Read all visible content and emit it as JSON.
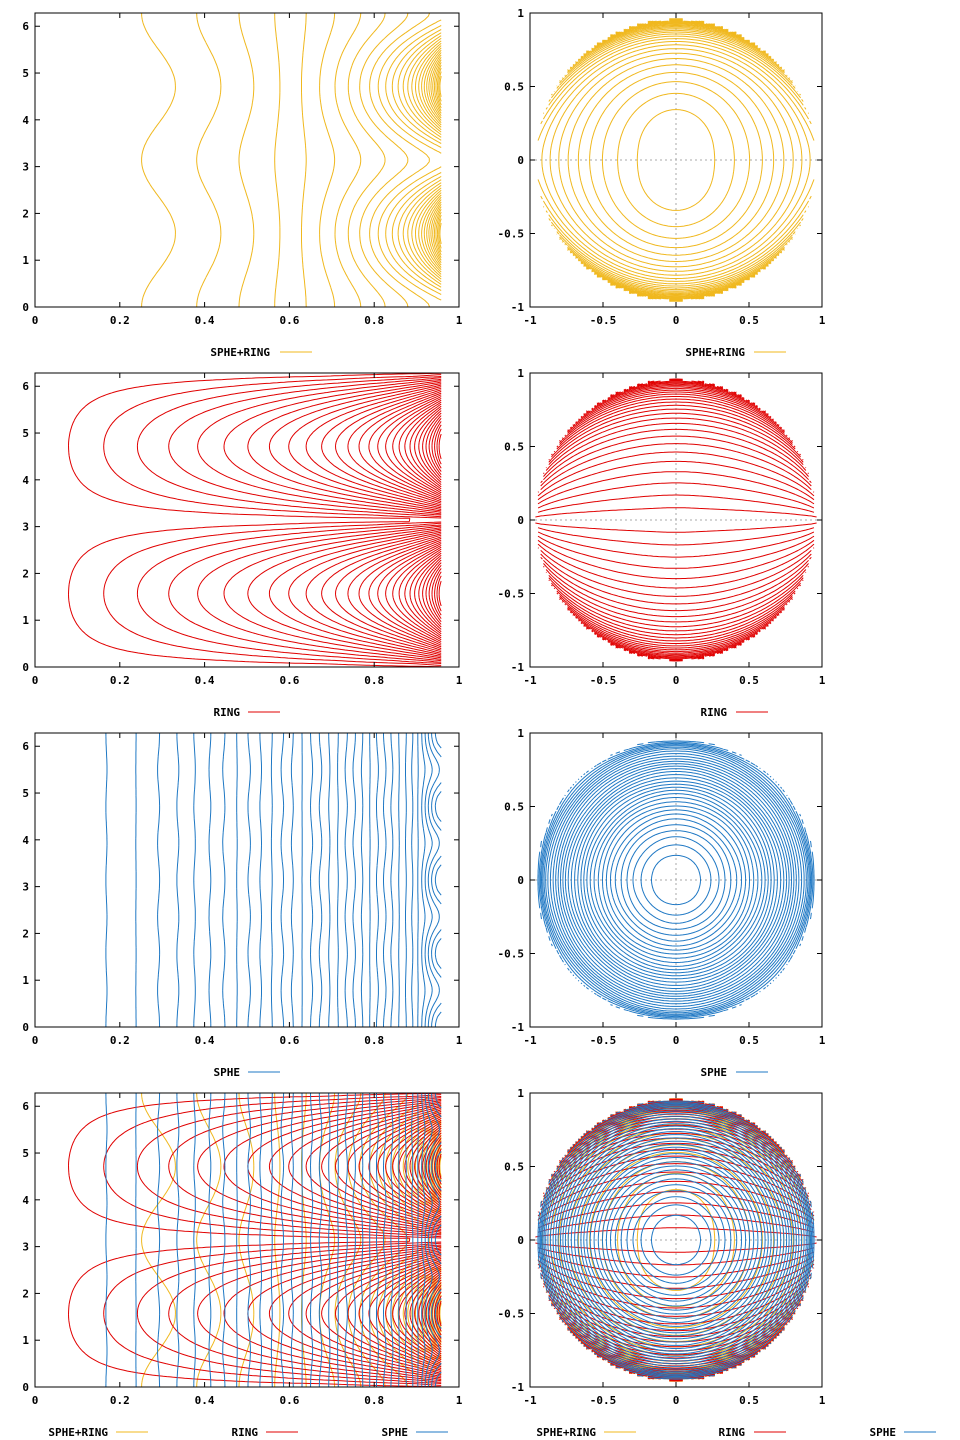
{
  "colors": {
    "sphe_ring": "#f0b81e",
    "ring": "#e00000",
    "sphe": "#1f78c4",
    "axis": "#000000",
    "zero_line": "#a8a8a8"
  },
  "chart_data": [
    {
      "id": "p1",
      "type": "contour",
      "coords": "r-theta",
      "xlim": [
        0,
        1
      ],
      "ylim": [
        0,
        6.283
      ],
      "xticks": [
        "0",
        "0.2",
        "0.4",
        "0.6",
        "0.8",
        "1"
      ],
      "yticks": [
        "0",
        "1",
        "2",
        "3",
        "4",
        "5",
        "6"
      ],
      "series": [
        {
          "name": "SPHE+RING",
          "color_key": "sphe_ring",
          "field": "sphe_ring"
        }
      ],
      "legend": [
        "SPHE+RING"
      ]
    },
    {
      "id": "p2",
      "type": "contour",
      "coords": "disk",
      "xlim": [
        -1,
        1
      ],
      "ylim": [
        -1,
        1
      ],
      "xticks": [
        "-1",
        "-0.5",
        "0",
        "0.5",
        "1"
      ],
      "yticks": [
        "-1",
        "-0.5",
        "0",
        "0.5",
        "1"
      ],
      "series": [
        {
          "name": "SPHE+RING",
          "color_key": "sphe_ring",
          "field": "sphe_ring"
        }
      ],
      "legend": [
        "SPHE+RING"
      ]
    },
    {
      "id": "p3",
      "type": "contour",
      "coords": "r-theta",
      "xlim": [
        0,
        1
      ],
      "ylim": [
        0,
        6.283
      ],
      "xticks": [
        "0",
        "0.2",
        "0.4",
        "0.6",
        "0.8",
        "1"
      ],
      "yticks": [
        "0",
        "1",
        "2",
        "3",
        "4",
        "5",
        "6"
      ],
      "series": [
        {
          "name": "RING",
          "color_key": "ring",
          "field": "ring"
        }
      ],
      "legend": [
        "RING"
      ]
    },
    {
      "id": "p4",
      "type": "contour",
      "coords": "disk",
      "xlim": [
        -1,
        1
      ],
      "ylim": [
        -1,
        1
      ],
      "xticks": [
        "-1",
        "-0.5",
        "0",
        "0.5",
        "1"
      ],
      "yticks": [
        "-1",
        "-0.5",
        "0",
        "0.5",
        "1"
      ],
      "series": [
        {
          "name": "RING",
          "color_key": "ring",
          "field": "ring"
        }
      ],
      "legend": [
        "RING"
      ]
    },
    {
      "id": "p5",
      "type": "contour",
      "coords": "r-theta",
      "xlim": [
        0,
        1
      ],
      "ylim": [
        0,
        6.283
      ],
      "xticks": [
        "0",
        "0.2",
        "0.4",
        "0.6",
        "0.8",
        "1"
      ],
      "yticks": [
        "0",
        "1",
        "2",
        "3",
        "4",
        "5",
        "6"
      ],
      "series": [
        {
          "name": "SPHE",
          "color_key": "sphe",
          "field": "sphe"
        }
      ],
      "legend": [
        "SPHE"
      ]
    },
    {
      "id": "p6",
      "type": "contour",
      "coords": "disk",
      "xlim": [
        -1,
        1
      ],
      "ylim": [
        -1,
        1
      ],
      "xticks": [
        "-1",
        "-0.5",
        "0",
        "0.5",
        "1"
      ],
      "yticks": [
        "-1",
        "-0.5",
        "0",
        "0.5",
        "1"
      ],
      "series": [
        {
          "name": "SPHE",
          "color_key": "sphe",
          "field": "sphe"
        }
      ],
      "legend": [
        "SPHE"
      ]
    },
    {
      "id": "p7",
      "type": "contour",
      "coords": "r-theta",
      "xlim": [
        0,
        1
      ],
      "ylim": [
        0,
        6.283
      ],
      "xticks": [
        "0",
        "0.2",
        "0.4",
        "0.6",
        "0.8",
        "1"
      ],
      "yticks": [
        "0",
        "1",
        "2",
        "3",
        "4",
        "5",
        "6"
      ],
      "series": [
        {
          "name": "SPHE+RING",
          "color_key": "sphe_ring",
          "field": "sphe_ring"
        },
        {
          "name": "RING",
          "color_key": "ring",
          "field": "ring"
        },
        {
          "name": "SPHE",
          "color_key": "sphe",
          "field": "sphe"
        }
      ],
      "legend": [
        "SPHE+RING",
        "RING",
        "SPHE"
      ]
    },
    {
      "id": "p8",
      "type": "contour",
      "coords": "disk",
      "xlim": [
        -1,
        1
      ],
      "ylim": [
        -1,
        1
      ],
      "xticks": [
        "-1",
        "-0.5",
        "0",
        "0.5",
        "1"
      ],
      "yticks": [
        "-1",
        "-0.5",
        "0",
        "0.5",
        "1"
      ],
      "series": [
        {
          "name": "SPHE+RING",
          "color_key": "sphe_ring",
          "field": "sphe_ring"
        },
        {
          "name": "RING",
          "color_key": "ring",
          "field": "ring"
        },
        {
          "name": "SPHE",
          "color_key": "sphe",
          "field": "sphe"
        }
      ],
      "legend": [
        "SPHE+RING",
        "RING",
        "SPHE"
      ]
    }
  ]
}
